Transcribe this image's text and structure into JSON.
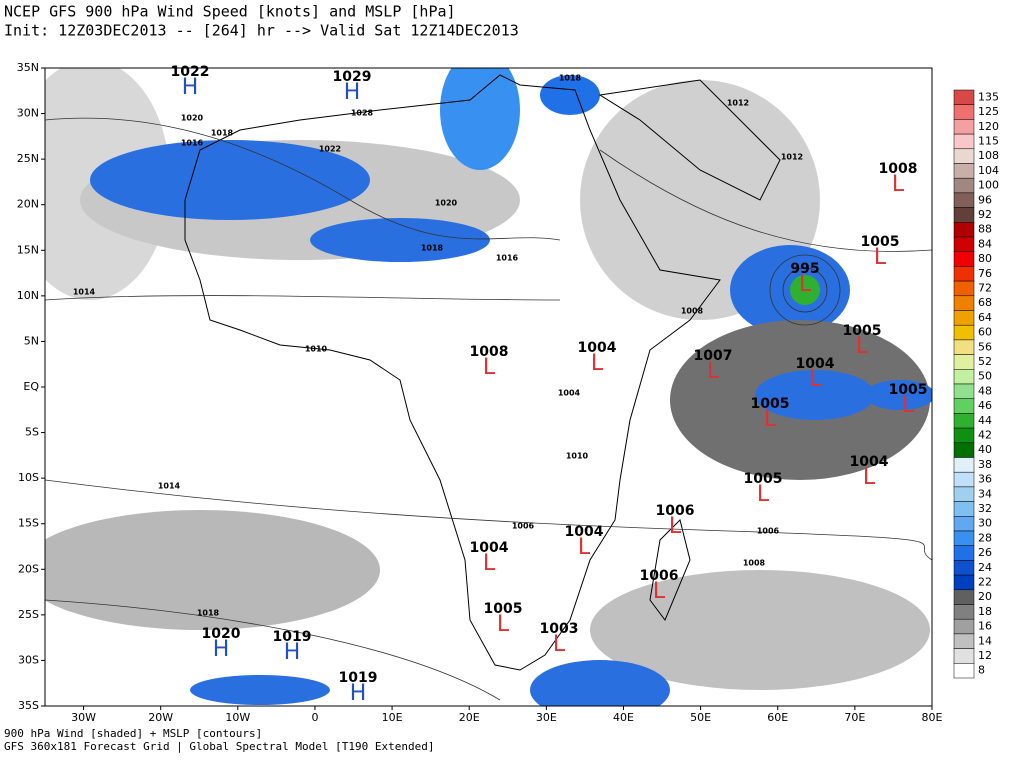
{
  "header": {
    "title": "NCEP GFS 900 hPa Wind Speed [knots] and MSLP [hPa]",
    "subtitle": "Init: 12Z03DEC2013 -- [264] hr --> Valid Sat 12Z14DEC2013"
  },
  "footer": {
    "line1": "900 hPa Wind [shaded] + MSLP [contours]",
    "line2": "GFS 360x181 Forecast Grid | Global Spectral Model [T190 Extended]"
  },
  "map": {
    "lat_labels": [
      "35N",
      "30N",
      "25N",
      "20N",
      "15N",
      "10N",
      "5N",
      "EQ",
      "5S",
      "10S",
      "15S",
      "20S",
      "25S",
      "30S",
      "35S"
    ],
    "lon_labels": [
      "30W",
      "20W",
      "10W",
      "0",
      "10E",
      "20E",
      "30E",
      "40E",
      "50E",
      "60E",
      "70E",
      "80E"
    ],
    "highs": [
      {
        "symbol": "H",
        "value": 1022
      },
      {
        "symbol": "H",
        "value": 1029
      },
      {
        "symbol": "H",
        "value": 1020
      },
      {
        "symbol": "H",
        "value": 1019
      },
      {
        "symbol": "H",
        "value": 1019
      }
    ],
    "lows": [
      {
        "symbol": "L",
        "value": 1008
      },
      {
        "symbol": "L",
        "value": 1005
      },
      {
        "symbol": "L",
        "value": 995
      },
      {
        "symbol": "L",
        "value": 1005
      },
      {
        "symbol": "L",
        "value": 1004
      },
      {
        "symbol": "L",
        "value": 1007
      },
      {
        "symbol": "L",
        "value": 1005
      },
      {
        "symbol": "L",
        "value": 1005
      },
      {
        "symbol": "L",
        "value": 1004
      },
      {
        "symbol": "L",
        "value": 1005
      },
      {
        "symbol": "L",
        "value": 1008
      },
      {
        "symbol": "L",
        "value": 1004
      },
      {
        "symbol": "L",
        "value": 1006
      },
      {
        "symbol": "L",
        "value": 1004
      },
      {
        "symbol": "L",
        "value": 1004
      },
      {
        "symbol": "L",
        "value": 1006
      },
      {
        "symbol": "L",
        "value": 1005
      },
      {
        "symbol": "L",
        "value": 1003
      }
    ],
    "contour_labels": [
      1020,
      1018,
      1016,
      1028,
      1022,
      1020,
      1018,
      1016,
      1014,
      1010,
      1008,
      1010,
      1014,
      1006,
      1006,
      1008,
      1018,
      1012,
      1018,
      1012,
      1004
    ]
  },
  "colorbar": {
    "labels": [
      135,
      125,
      120,
      115,
      108,
      104,
      100,
      96,
      92,
      88,
      84,
      80,
      76,
      72,
      68,
      64,
      60,
      56,
      52,
      50,
      48,
      46,
      44,
      42,
      40,
      38,
      36,
      34,
      32,
      30,
      28,
      26,
      24,
      22,
      20,
      18,
      16,
      14,
      12,
      8
    ],
    "colors": [
      "#d84848",
      "#f07070",
      "#f4a0a0",
      "#f8c8c8",
      "#e8d8d0",
      "#c8b0a8",
      "#a08880",
      "#806058",
      "#604038",
      "#b00000",
      "#d00000",
      "#f00000",
      "#f03000",
      "#f06000",
      "#f08000",
      "#f0a000",
      "#f0c000",
      "#f0e080",
      "#e0f0a0",
      "#c0f0a0",
      "#90e090",
      "#60d060",
      "#30b030",
      "#109010",
      "#007000",
      "#e0f0f8",
      "#c0e0f8",
      "#a0d0f0",
      "#80c0f0",
      "#60a8f0",
      "#3890f0",
      "#2070e8",
      "#1050d0",
      "#0040c0",
      "#606060",
      "#808080",
      "#a0a0a0",
      "#c0c0c0",
      "#e0e0e0",
      "#ffffff"
    ]
  }
}
